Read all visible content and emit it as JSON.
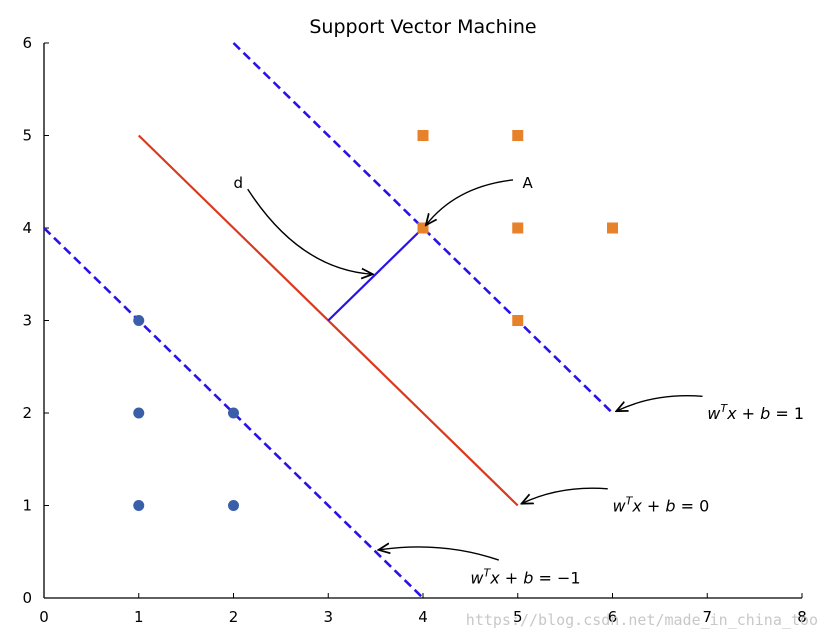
{
  "chart_data": {
    "type": "scatter",
    "title": "Support Vector Machine",
    "xlabel": "",
    "ylabel": "",
    "xlim": [
      0,
      8
    ],
    "ylim": [
      0,
      6
    ],
    "xticks": [
      "0",
      "1",
      "2",
      "3",
      "4",
      "5",
      "6",
      "7",
      "8"
    ],
    "yticks": [
      "0",
      "1",
      "2",
      "3",
      "4",
      "5",
      "6"
    ],
    "grid": false,
    "series": [
      {
        "marker": "circle",
        "color": "#3a5fa8",
        "points": [
          [
            1,
            1
          ],
          [
            1,
            2
          ],
          [
            1,
            3
          ],
          [
            2,
            1
          ],
          [
            2,
            2
          ]
        ]
      },
      {
        "marker": "square",
        "color": "#e8822a",
        "points": [
          [
            4,
            4
          ],
          [
            4,
            5
          ],
          [
            5,
            3
          ],
          [
            5,
            4
          ],
          [
            5,
            5
          ],
          [
            6,
            4
          ]
        ]
      }
    ],
    "lines": [
      {
        "role": "decision-boundary",
        "style": "solid",
        "color": "#d93a1e",
        "from": [
          1,
          5
        ],
        "to": [
          5,
          1
        ]
      },
      {
        "role": "upper-margin",
        "style": "dashed",
        "color": "#2a12e6",
        "from": [
          2,
          6
        ],
        "to": [
          6,
          2
        ]
      },
      {
        "role": "lower-margin",
        "style": "dashed",
        "color": "#2a12e6",
        "from": [
          0,
          4
        ],
        "to": [
          4,
          0
        ]
      },
      {
        "role": "distance-segment",
        "style": "solid",
        "color": "#2a12e6",
        "from": [
          3,
          3
        ],
        "to": [
          4,
          4
        ]
      }
    ],
    "annotations": [
      {
        "id": "d",
        "label": "d",
        "text_at": [
          2,
          4.5
        ],
        "arrow_tail": [
          2.15,
          4.42
        ],
        "arrow_head": [
          3.47,
          3.5
        ],
        "arrow_ctrl": [
          2.7,
          3.55
        ]
      },
      {
        "id": "A",
        "label": "A",
        "text_at": [
          5.05,
          4.5
        ],
        "arrow_tail": [
          4.95,
          4.52
        ],
        "arrow_head": [
          4.03,
          4.03
        ],
        "arrow_ctrl": [
          4.35,
          4.45
        ]
      },
      {
        "id": "eq-plus",
        "label": {
          "w": "w",
          "sup": "T",
          "rest": "x + b = ",
          "val": "1"
        },
        "text_at": [
          7,
          2
        ],
        "arrow_tail": [
          6.95,
          2.18
        ],
        "arrow_head": [
          6.04,
          2.02
        ],
        "arrow_ctrl": [
          6.45,
          2.22
        ]
      },
      {
        "id": "eq-zero",
        "label": {
          "w": "w",
          "sup": "T",
          "rest": "x + b = ",
          "val": "0"
        },
        "text_at": [
          6,
          1
        ],
        "arrow_tail": [
          5.95,
          1.18
        ],
        "arrow_head": [
          5.04,
          1.02
        ],
        "arrow_ctrl": [
          5.45,
          1.22
        ]
      },
      {
        "id": "eq-minus",
        "label": {
          "w": "w",
          "sup": "T",
          "rest": "x + b = ",
          "val": "−1"
        },
        "text_at": [
          4.5,
          0.22
        ],
        "arrow_tail": [
          4.8,
          0.41
        ],
        "arrow_head": [
          3.53,
          0.52
        ],
        "arrow_ctrl": [
          4.2,
          0.62
        ]
      }
    ],
    "watermark": "https://blog.csdn.net/made_in_china_too"
  }
}
